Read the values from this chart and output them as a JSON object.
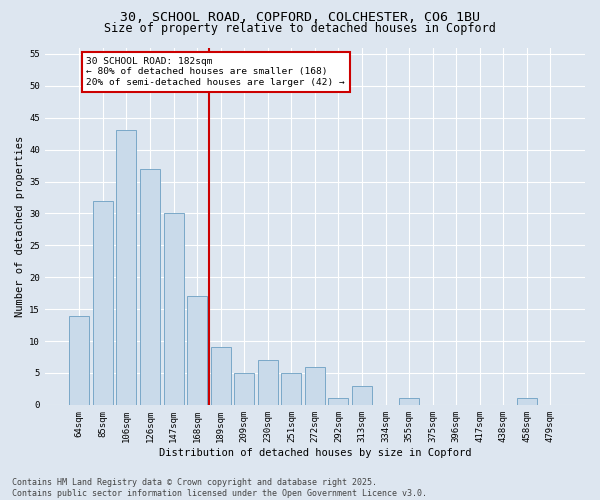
{
  "title1": "30, SCHOOL ROAD, COPFORD, COLCHESTER, CO6 1BU",
  "title2": "Size of property relative to detached houses in Copford",
  "xlabel": "Distribution of detached houses by size in Copford",
  "ylabel": "Number of detached properties",
  "categories": [
    "64sqm",
    "85sqm",
    "106sqm",
    "126sqm",
    "147sqm",
    "168sqm",
    "189sqm",
    "209sqm",
    "230sqm",
    "251sqm",
    "272sqm",
    "292sqm",
    "313sqm",
    "334sqm",
    "355sqm",
    "375sqm",
    "396sqm",
    "417sqm",
    "438sqm",
    "458sqm",
    "479sqm"
  ],
  "values": [
    14,
    32,
    43,
    37,
    30,
    17,
    9,
    5,
    7,
    5,
    6,
    1,
    3,
    0,
    1,
    0,
    0,
    0,
    0,
    1,
    0
  ],
  "bar_color": "#c9daea",
  "bar_edge_color": "#7aa8c8",
  "vline_color": "#cc0000",
  "annotation_text": "30 SCHOOL ROAD: 182sqm\n← 80% of detached houses are smaller (168)\n20% of semi-detached houses are larger (42) →",
  "annotation_box_color": "#ffffff",
  "annotation_box_edge": "#cc0000",
  "background_color": "#dde6f0",
  "plot_bg_color": "#dde6f0",
  "grid_color": "#ffffff",
  "ylim": [
    0,
    56
  ],
  "yticks": [
    0,
    5,
    10,
    15,
    20,
    25,
    30,
    35,
    40,
    45,
    50,
    55
  ],
  "footer1": "Contains HM Land Registry data © Crown copyright and database right 2025.",
  "footer2": "Contains public sector information licensed under the Open Government Licence v3.0.",
  "title_fontsize": 9.5,
  "subtitle_fontsize": 8.5,
  "axis_label_fontsize": 7.5,
  "tick_fontsize": 6.5,
  "annotation_fontsize": 6.8,
  "footer_fontsize": 6.0
}
